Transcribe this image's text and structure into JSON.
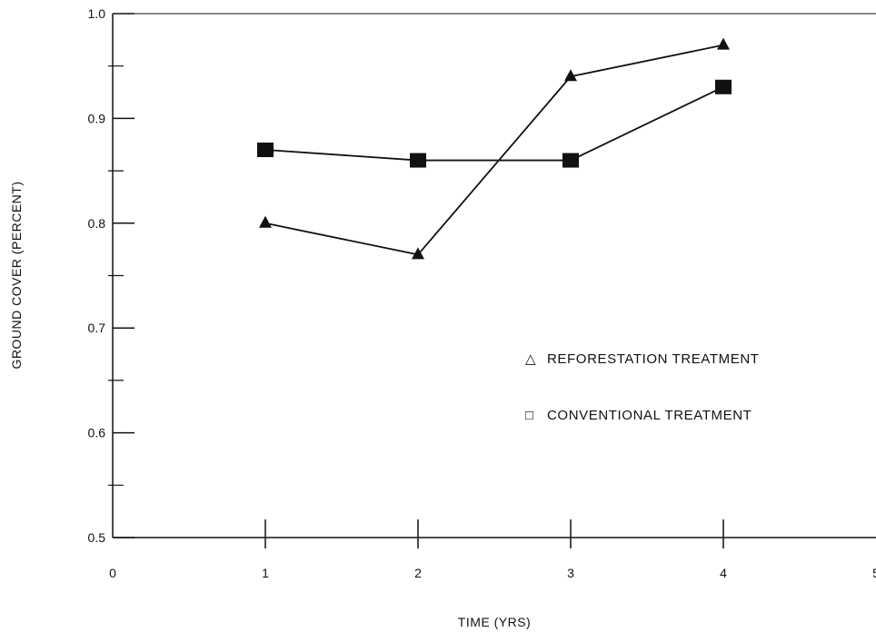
{
  "chart_data": {
    "type": "line",
    "title": "",
    "xlabel": "TIME (YRS)",
    "ylabel": "GROUND COVER (PERCENT)",
    "xlim": [
      0,
      5
    ],
    "ylim": [
      0.5,
      1.0
    ],
    "x_ticks": [
      "0",
      "1",
      "2",
      "3",
      "4",
      "5"
    ],
    "y_ticks": [
      "0.5",
      "0.6",
      "0.7",
      "0.8",
      "0.9",
      "1.0"
    ],
    "grid": false,
    "legend_position": "right-middle",
    "series": [
      {
        "name": "REFORESTATION TREATMENT",
        "marker": "triangle",
        "legend_symbol": "△",
        "x": [
          1,
          2,
          3,
          4
        ],
        "y": [
          0.8,
          0.77,
          0.94,
          0.97
        ]
      },
      {
        "name": "CONVENTIONAL TREATMENT",
        "marker": "square",
        "legend_symbol": "□",
        "x": [
          1,
          2,
          3,
          4
        ],
        "y": [
          0.87,
          0.86,
          0.86,
          0.93
        ]
      }
    ]
  }
}
